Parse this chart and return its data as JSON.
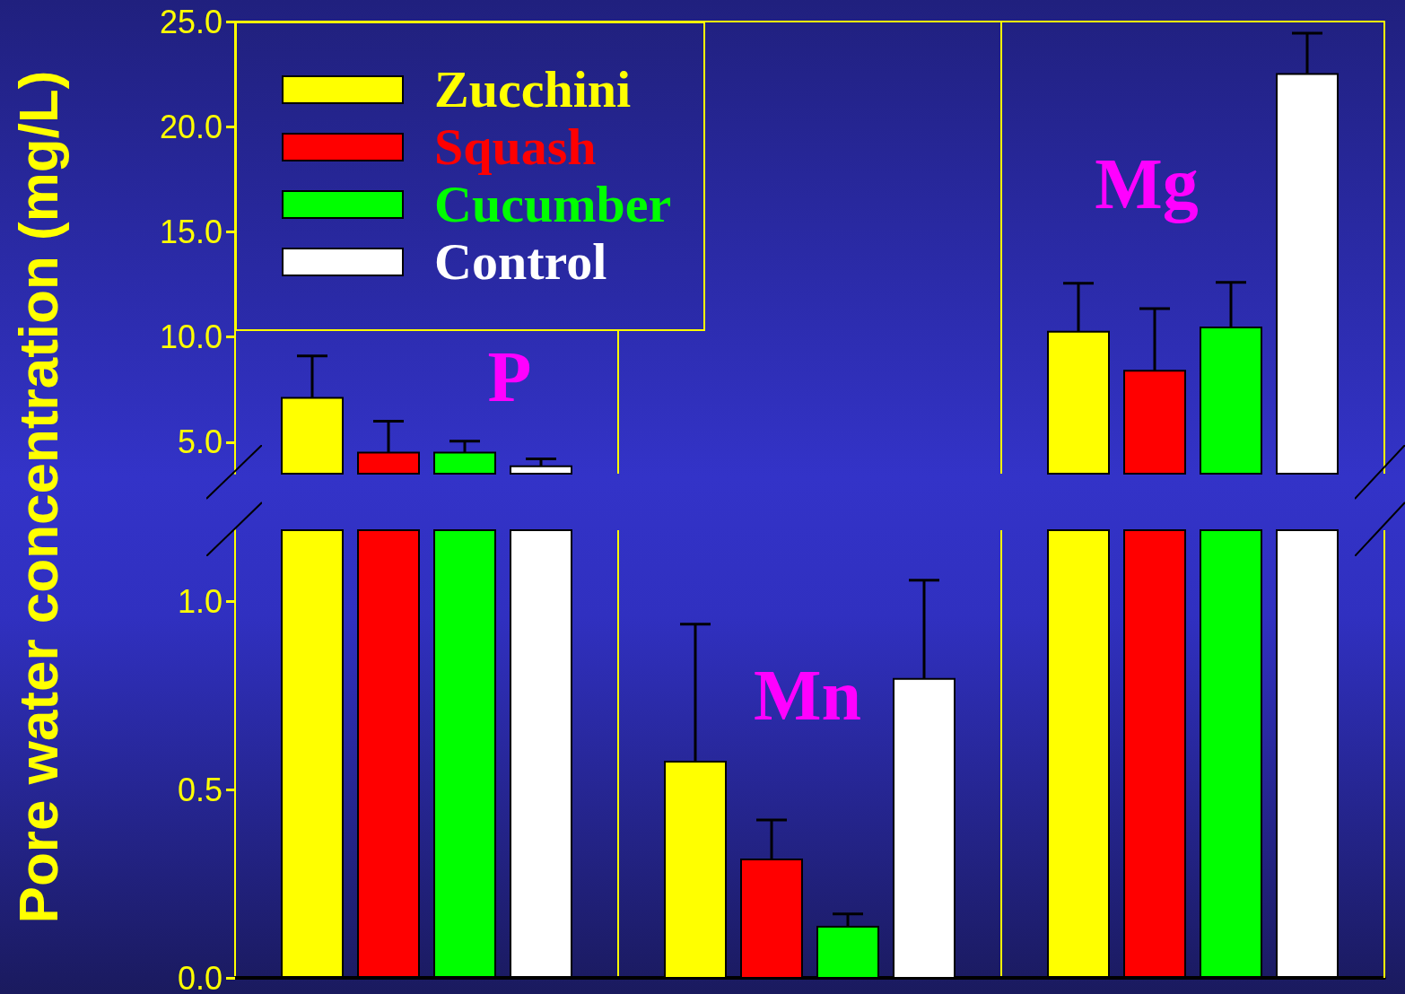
{
  "chart_data": [
    {
      "type": "bar",
      "ylabel": "Pore water concentration  (mg/L)",
      "categories": [
        null,
        null,
        null
      ],
      "annotations": [
        "P",
        "Mg"
      ],
      "series": [
        {
          "name": "Zucchini",
          "color": "#ffff00",
          "values": [
            7.1,
            null,
            10.25
          ],
          "errors": [
            [
              7.1,
              9.1
            ],
            null,
            [
              10.25,
              12.55
            ]
          ]
        },
        {
          "name": "Squash",
          "color": "#ff0000",
          "values": [
            4.5,
            null,
            8.4
          ],
          "errors": [
            [
              4.5,
              6.0
            ],
            null,
            [
              8.4,
              11.35
            ]
          ]
        },
        {
          "name": "Cucumber",
          "color": "#00ff00",
          "values": [
            4.5,
            null,
            10.45
          ],
          "errors": [
            [
              4.5,
              5.05
            ],
            null,
            [
              10.45,
              12.6
            ]
          ]
        },
        {
          "name": "Control",
          "color": "#ffffff",
          "values": [
            3.85,
            null,
            22.5
          ],
          "errors": [
            [
              3.85,
              4.2
            ],
            null,
            [
              22.5,
              24.45
            ]
          ]
        }
      ],
      "ylim": [
        3.5,
        25
      ],
      "yticks": [
        {
          "value": 5,
          "label": "5.0"
        },
        {
          "value": 10,
          "label": "10.0"
        },
        {
          "value": 15,
          "label": "15.0"
        },
        {
          "value": 20,
          "label": "20.0"
        },
        {
          "value": 25,
          "label": "25.0"
        }
      ],
      "grid": "x",
      "legend": "top left",
      "tick_labels": "y"
    },
    {
      "type": "bar",
      "categories": [
        null,
        null,
        null
      ],
      "annotations": [
        "Mn"
      ],
      "series": [
        {
          "color": "#ffff00",
          "values": [
            null,
            0.575,
            null
          ],
          "errors": [
            null,
            [
              0.575,
              0.94
            ],
            null
          ]
        },
        {
          "color": "#ff0000",
          "values": [
            null,
            0.315,
            null
          ],
          "errors": [
            null,
            [
              0.315,
              0.42
            ],
            null
          ]
        },
        {
          "color": "#00ff00",
          "values": [
            null,
            0.136,
            null
          ],
          "errors": [
            null,
            [
              0.136,
              0.17
            ],
            null
          ]
        },
        {
          "color": "#ffffff",
          "values": [
            null,
            0.795,
            null
          ],
          "errors": [
            null,
            [
              0.795,
              1.057
            ],
            null
          ]
        }
      ],
      "ylim": [
        0,
        1.19
      ],
      "yticks": [
        {
          "value": 0,
          "label": "0.0"
        },
        0.5,
        {
          "value": 1,
          "label": "1.0"
        }
      ],
      "grid": "x",
      "tick_labels": "y"
    }
  ]
}
